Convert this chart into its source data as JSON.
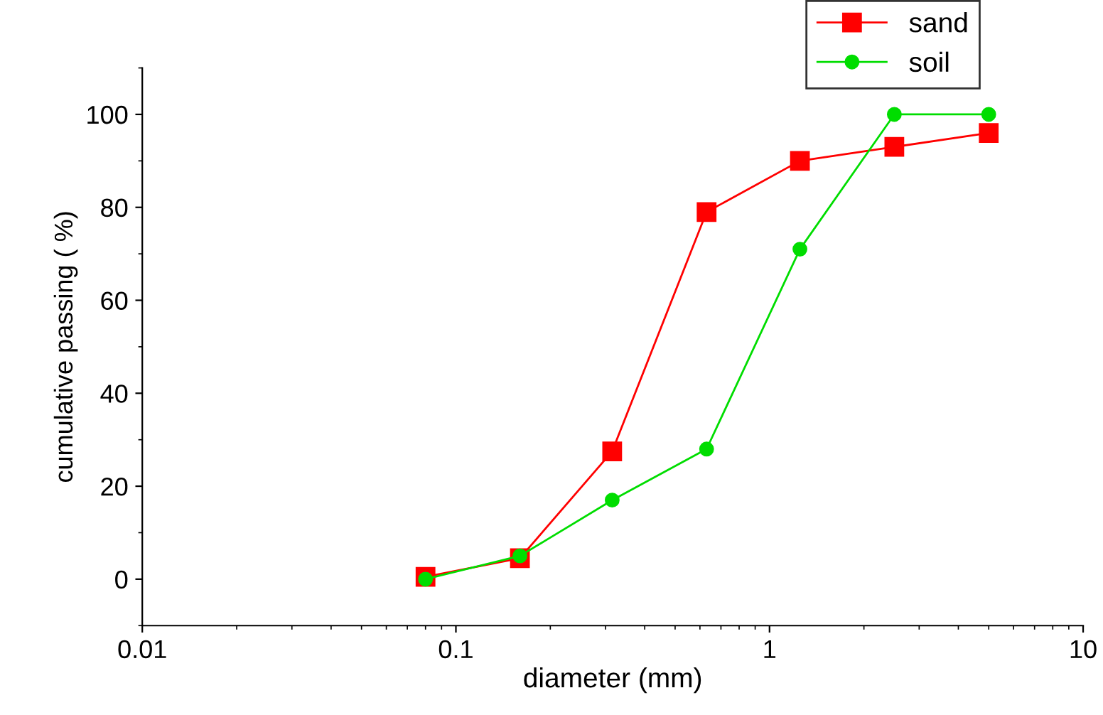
{
  "chart_data": {
    "type": "line",
    "xlabel": "diameter (mm)",
    "ylabel": "cumulative passing ( %)",
    "log": "x",
    "xlim": [
      0.01,
      10
    ],
    "xticks": [
      0.01,
      0.1,
      1,
      10
    ],
    "ylim": [
      -10,
      110
    ],
    "yticks": [
      0,
      20,
      40,
      60,
      80,
      100
    ],
    "grid": false,
    "legend": "top right",
    "line_style": "solid",
    "series": [
      {
        "name": "sand",
        "color": "#ff0000",
        "marker": "square",
        "x": [
          0.08,
          0.16,
          0.315,
          0.63,
          1.25,
          2.5,
          5
        ],
        "values": [
          0.5,
          4.5,
          27.5,
          79,
          90,
          93,
          96
        ]
      },
      {
        "name": "soil",
        "color": "#00dd00",
        "marker": "circle",
        "x": [
          0.08,
          0.16,
          0.315,
          0.63,
          1.25,
          2.5,
          5
        ],
        "values": [
          0,
          5,
          17,
          28,
          71,
          100,
          100
        ]
      }
    ]
  }
}
